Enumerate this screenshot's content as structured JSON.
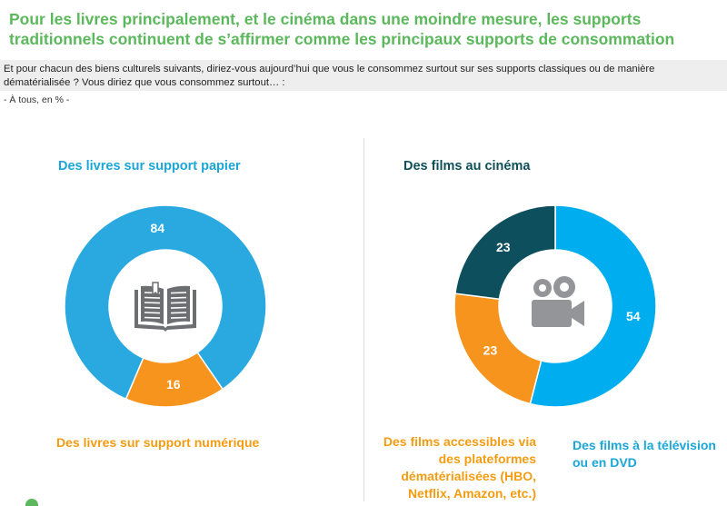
{
  "header": {
    "title": "Pour les livres principalement, et le cinéma dans une moindre mesure, les supports traditionnels continuent de s’affirmer comme les principaux supports de consommation",
    "question": "Et pour chacun des biens culturels suivants, diriez-vous aujourd’hui que vous le consommez surtout sur ses supports classiques ou de manière dématérialisée ? Vous diriez que vous consommez surtout… :",
    "base": "- À tous, en % -"
  },
  "chart_data": [
    {
      "type": "pie",
      "title": "Des livres sur support papier",
      "unit": "%",
      "slices": [
        {
          "label": "Des livres sur support papier",
          "value": 84,
          "color": "#29a9e0"
        },
        {
          "label": "Des livres sur support numérique",
          "value": 16,
          "color": "#f7941d"
        }
      ],
      "center_icon": "book-icon"
    },
    {
      "type": "pie",
      "title": "Des films au cinéma",
      "unit": "%",
      "slices": [
        {
          "label": "Des films à la télévision ou en DVD",
          "value": 54,
          "color": "#00aeef"
        },
        {
          "label": "Des films accessibles via des plateformes dématérialisées (HBO, Netflix, Amazon, etc.)",
          "value": 23,
          "color": "#f7941d"
        },
        {
          "label": "Des films au cinéma",
          "value": 23,
          "color": "#0d4f5c"
        }
      ],
      "center_icon": "video-camera-icon"
    }
  ]
}
